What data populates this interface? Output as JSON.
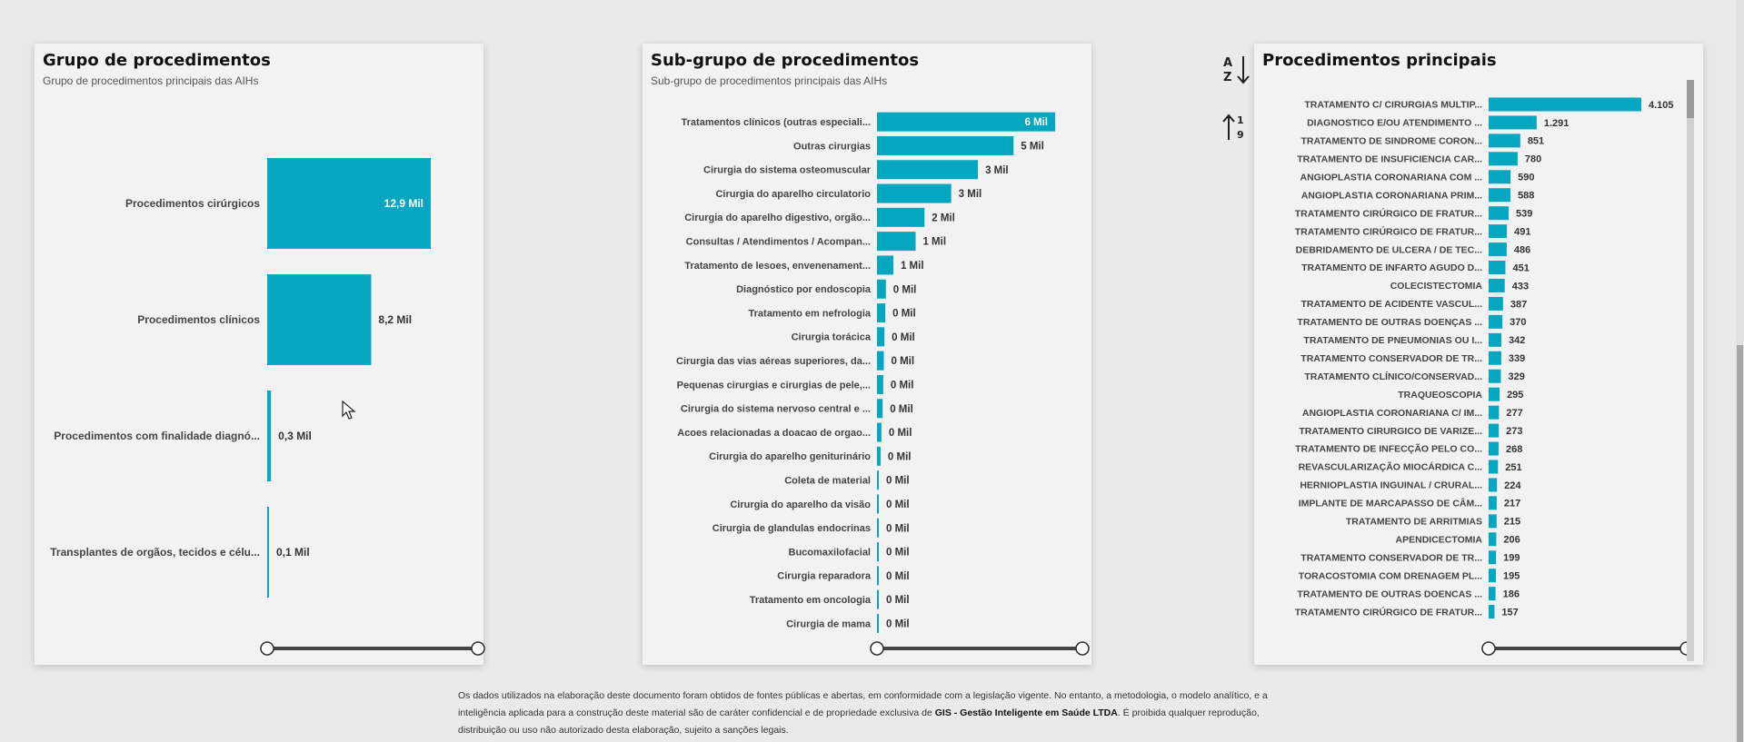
{
  "panels": {
    "grupo": {
      "title": "Grupo de procedimentos",
      "subtitle": "Grupo de procedimentos principais das AIHs"
    },
    "subgrupo": {
      "title": "Sub-grupo de procedimentos",
      "subtitle": "Sub-grupo de procedimentos principais das AIHs"
    },
    "principais": {
      "title": "Procedimentos principais"
    }
  },
  "toolbar": {
    "sort_az_icon": "sort-alpha-icon",
    "sort_num_icon": "sort-numeric-icon"
  },
  "colors": {
    "bar": "#04a7bf",
    "background": "#eaeaea",
    "card": "#f2f2f2"
  },
  "footer": {
    "text_1": "Os dados utilizados na elaboração deste documento foram obtidos de fontes públicas e abertas, em conformidade com a legislação vigente. No entanto, a metodologia, o modelo analítico, e a inteligência aplicada para a construção deste material são de caráter confidencial e de propriedade exclusiva de ",
    "company": "GIS - Gestão Inteligente em Saúde LTDA",
    "text_2": ". É proibida qualquer reprodução, distribuição ou uso não autorizado desta elaboração, sujeito a sanções legais."
  },
  "chart_data": [
    {
      "type": "bar",
      "orientation": "horizontal",
      "categories": [
        "Procedimentos cirúrgicos",
        "Procedimentos clínicos",
        "Procedimentos com finalidade diagnó...",
        "Transplantes de orgãos, tecidos e célu..."
      ],
      "values": [
        12.9,
        8.2,
        0.3,
        0.1
      ],
      "labels": [
        "12,9 Mil",
        "8,2 Mil",
        "0,3 Mil",
        "0,1 Mil"
      ],
      "xlim": [
        0,
        12.9
      ]
    },
    {
      "type": "bar",
      "orientation": "horizontal",
      "categories": [
        "Tratamentos clínicos (outras especiali...",
        "Outras cirurgias",
        "Cirurgia do sistema osteomuscular",
        "Cirurgia do aparelho circulatorio",
        "Cirurgia do aparelho digestivo, orgão...",
        "Consultas / Atendimentos / Acompan...",
        "Tratamento de lesoes, envenenament...",
        "Diagnóstico por endoscopia",
        "Tratamento em nefrologia",
        "Cirurgia torácica",
        "Cirurgia das vias aéreas superiores, da...",
        "Pequenas cirurgias e cirurgias de pele,...",
        "Cirurgia do sistema nervoso central e ...",
        "Acoes relacionadas a doacao de orgao...",
        "Cirurgia do aparelho geniturinário",
        "Coleta de material",
        "Cirurgia do aparelho da visão",
        "Cirurgia de glandulas endocrinas",
        "Bucomaxilofacial",
        "Cirurgia reparadora",
        "Tratamento em oncologia",
        "Cirurgia de mama"
      ],
      "values": [
        6.0,
        4.6,
        3.4,
        2.5,
        1.6,
        1.3,
        0.55,
        0.3,
        0.28,
        0.25,
        0.23,
        0.21,
        0.19,
        0.15,
        0.12,
        0.05,
        0.05,
        0.05,
        0.04,
        0.04,
        0.04,
        0.03
      ],
      "labels": [
        "6 Mil",
        "5 Mil",
        "3 Mil",
        "3 Mil",
        "2 Mil",
        "1 Mil",
        "1 Mil",
        "0 Mil",
        "0 Mil",
        "0 Mil",
        "0 Mil",
        "0 Mil",
        "0 Mil",
        "0 Mil",
        "0 Mil",
        "0 Mil",
        "0 Mil",
        "0 Mil",
        "0 Mil",
        "0 Mil",
        "0 Mil",
        "0 Mil"
      ],
      "xlim": [
        0,
        6.0
      ]
    },
    {
      "type": "bar",
      "orientation": "horizontal",
      "categories": [
        "TRATAMENTO C/ CIRURGIAS MULTIP...",
        "DIAGNOSTICO E/OU ATENDIMENTO ...",
        "TRATAMENTO DE SINDROME CORON...",
        "TRATAMENTO DE INSUFICIENCIA CAR...",
        "ANGIOPLASTIA CORONARIANA COM ...",
        "ANGIOPLASTIA CORONARIANA PRIM...",
        "TRATAMENTO CIRÚRGICO DE FRATUR...",
        "TRATAMENTO CIRÚRGICO DE FRATUR...",
        "DEBRIDAMENTO DE ULCERA / DE TEC...",
        "TRATAMENTO DE INFARTO AGUDO D...",
        "COLECISTECTOMIA",
        "TRATAMENTO DE ACIDENTE VASCUL...",
        "TRATAMENTO DE OUTRAS DOENÇAS ...",
        "TRATAMENTO DE PNEUMONIAS OU I...",
        "TRATAMENTO CONSERVADOR DE TR...",
        "TRATAMENTO CLÍNICO/CONSERVAD...",
        "TRAQUEOSCOPIA",
        "ANGIOPLASTIA CORONARIANA C/ IM...",
        "TRATAMENTO CIRURGICO DE VARIZE...",
        "TRATAMENTO DE INFECÇÃO PELO CO...",
        "REVASCULARIZAÇÃO MIOCÁRDICA C...",
        "HERNIOPLASTIA INGUINAL / CRURAL...",
        "IMPLANTE DE MARCAPASSO DE CÂM...",
        "TRATAMENTO DE ARRITMIAS",
        "APENDICECTOMIA",
        "TRATAMENTO CONSERVADOR DE TR...",
        "TORACOSTOMIA COM DRENAGEM PL...",
        "TRATAMENTO DE OUTRAS DOENCAS ...",
        "TRATAMENTO CIRÚRGICO DE FRATUR..."
      ],
      "values": [
        4105,
        1291,
        851,
        780,
        590,
        588,
        539,
        491,
        486,
        451,
        433,
        387,
        370,
        342,
        339,
        329,
        295,
        277,
        273,
        268,
        251,
        224,
        217,
        215,
        206,
        199,
        195,
        186,
        157
      ],
      "labels": [
        "4.105",
        "1.291",
        "851",
        "780",
        "590",
        "588",
        "539",
        "491",
        "486",
        "451",
        "433",
        "387",
        "370",
        "342",
        "339",
        "329",
        "295",
        "277",
        "273",
        "268",
        "251",
        "224",
        "217",
        "215",
        "206",
        "199",
        "195",
        "186",
        "157"
      ],
      "xlim": [
        0,
        4105
      ]
    }
  ]
}
